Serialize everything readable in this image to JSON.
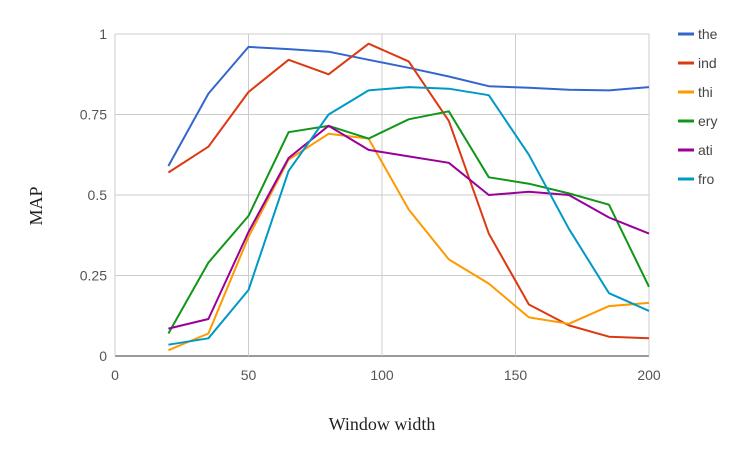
{
  "chart_data": {
    "type": "line",
    "xlabel": "Window width",
    "ylabel": "MAP",
    "xlim": [
      0,
      200
    ],
    "ylim": [
      0,
      1
    ],
    "x_ticks": [
      "0",
      "50",
      "100",
      "150",
      "200"
    ],
    "y_ticks": [
      "0",
      "0.25",
      "0.5",
      "0.75",
      "1"
    ],
    "grid": true,
    "legend_position": "right",
    "x": [
      20,
      35,
      50,
      65,
      80,
      95,
      110,
      125,
      140,
      155,
      170,
      185,
      200
    ],
    "series": [
      {
        "name": "the",
        "color": "#3366cc",
        "values": [
          0.59,
          0.815,
          0.96,
          0.953,
          0.945,
          0.92,
          0.895,
          0.868,
          0.838,
          0.833,
          0.827,
          0.825,
          0.835
        ]
      },
      {
        "name": "ind",
        "color": "#dc3912",
        "values": [
          0.57,
          0.65,
          0.82,
          0.92,
          0.875,
          0.97,
          0.915,
          0.73,
          0.38,
          0.16,
          0.095,
          0.06,
          0.055
        ]
      },
      {
        "name": "thi",
        "color": "#ff9900",
        "values": [
          0.018,
          0.07,
          0.37,
          0.61,
          0.69,
          0.675,
          0.455,
          0.3,
          0.225,
          0.12,
          0.1,
          0.155,
          0.165
        ]
      },
      {
        "name": "ery",
        "color": "#109618",
        "values": [
          0.07,
          0.29,
          0.435,
          0.695,
          0.715,
          0.675,
          0.735,
          0.76,
          0.555,
          0.535,
          0.505,
          0.47,
          0.215
        ]
      },
      {
        "name": "ati",
        "color": "#990099",
        "values": [
          0.085,
          0.115,
          0.385,
          0.615,
          0.715,
          0.64,
          0.62,
          0.6,
          0.5,
          0.51,
          0.5,
          0.43,
          0.38
        ]
      },
      {
        "name": "fro",
        "color": "#0099c6",
        "values": [
          0.035,
          0.055,
          0.205,
          0.575,
          0.75,
          0.825,
          0.835,
          0.83,
          0.81,
          0.625,
          0.395,
          0.195,
          0.14
        ]
      }
    ]
  }
}
